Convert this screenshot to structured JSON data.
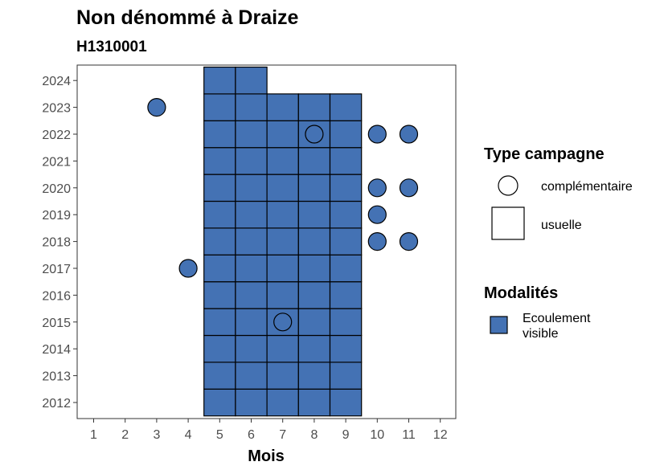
{
  "chart_data": {
    "type": "tile",
    "title": "Non dénommé à Draize",
    "subtitle": "H1310001",
    "xlabel": "Mois",
    "ylabel": "",
    "x_ticks": [
      1,
      2,
      3,
      4,
      5,
      6,
      7,
      8,
      9,
      10,
      11,
      12
    ],
    "y_ticks": [
      2012,
      2013,
      2014,
      2015,
      2016,
      2017,
      2018,
      2019,
      2020,
      2021,
      2022,
      2023,
      2024
    ],
    "xlim": [
      0.5,
      12.5
    ],
    "ylim": [
      2011.5,
      2024.5
    ],
    "grid": false,
    "fill_color": "#4472b4",
    "usuelle": [
      {
        "year": 2012,
        "months": [
          5,
          6,
          7,
          8,
          9
        ]
      },
      {
        "year": 2013,
        "months": [
          5,
          6,
          7,
          8,
          9
        ]
      },
      {
        "year": 2014,
        "months": [
          5,
          6,
          7,
          8,
          9
        ]
      },
      {
        "year": 2015,
        "months": [
          5,
          6,
          7,
          8,
          9
        ]
      },
      {
        "year": 2016,
        "months": [
          5,
          6,
          7,
          8,
          9
        ]
      },
      {
        "year": 2017,
        "months": [
          5,
          6,
          7,
          8,
          9
        ]
      },
      {
        "year": 2018,
        "months": [
          5,
          6,
          7,
          8,
          9
        ]
      },
      {
        "year": 2019,
        "months": [
          5,
          6,
          7,
          8,
          9
        ]
      },
      {
        "year": 2020,
        "months": [
          5,
          6,
          7,
          8,
          9
        ]
      },
      {
        "year": 2021,
        "months": [
          5,
          6,
          7,
          8,
          9
        ]
      },
      {
        "year": 2022,
        "months": [
          5,
          6,
          7,
          8,
          9
        ]
      },
      {
        "year": 2023,
        "months": [
          5,
          6,
          7,
          8,
          9
        ]
      },
      {
        "year": 2024,
        "months": [
          5,
          6
        ]
      }
    ],
    "complementaire": [
      {
        "month": 3,
        "year": 2023
      },
      {
        "month": 8,
        "year": 2022
      },
      {
        "month": 10,
        "year": 2022
      },
      {
        "month": 11,
        "year": 2022
      },
      {
        "month": 10,
        "year": 2020
      },
      {
        "month": 11,
        "year": 2020
      },
      {
        "month": 10,
        "year": 2019
      },
      {
        "month": 10,
        "year": 2018
      },
      {
        "month": 11,
        "year": 2018
      },
      {
        "month": 4,
        "year": 2017
      },
      {
        "month": 7,
        "year": 2015
      }
    ],
    "legend": {
      "placement": "right",
      "type_title": "Type campagne",
      "type_items": [
        "complémentaire",
        "usuelle"
      ],
      "modalite_title": "Modalités",
      "modalite_items": [
        {
          "label_lines": [
            "Ecoulement",
            "visible"
          ],
          "color": "#4472b4"
        }
      ]
    }
  }
}
